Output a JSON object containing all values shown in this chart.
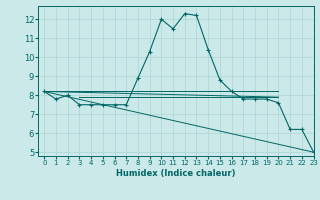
{
  "xlabel": "Humidex (Indice chaleur)",
  "background_color": "#cce9e9",
  "grid_color": "#aad4d4",
  "line_color": "#006666",
  "xlim": [
    -0.5,
    23
  ],
  "ylim": [
    4.8,
    12.7
  ],
  "yticks": [
    5,
    6,
    7,
    8,
    9,
    10,
    11,
    12
  ],
  "xticks": [
    0,
    1,
    2,
    3,
    4,
    5,
    6,
    7,
    8,
    9,
    10,
    11,
    12,
    13,
    14,
    15,
    16,
    17,
    18,
    19,
    20,
    21,
    22,
    23
  ],
  "main_x": [
    0,
    1,
    2,
    3,
    4,
    5,
    6,
    7,
    8,
    9,
    10,
    11,
    12,
    13,
    14,
    15,
    16,
    17,
    18,
    19,
    20,
    21,
    22,
    23
  ],
  "main_y": [
    8.2,
    7.8,
    8.0,
    7.5,
    7.5,
    7.5,
    7.5,
    7.5,
    8.9,
    10.3,
    12.0,
    11.5,
    12.3,
    12.2,
    10.4,
    8.8,
    8.2,
    7.8,
    7.8,
    7.8,
    7.6,
    6.2,
    6.2,
    5.0
  ],
  "ref_lines": [
    {
      "x": [
        0,
        20
      ],
      "y": [
        8.2,
        8.2
      ]
    },
    {
      "x": [
        0,
        20
      ],
      "y": [
        8.2,
        7.9
      ]
    },
    {
      "x": [
        3,
        20
      ],
      "y": [
        7.9,
        7.9
      ]
    },
    {
      "x": [
        0,
        23
      ],
      "y": [
        8.2,
        5.0
      ]
    }
  ]
}
